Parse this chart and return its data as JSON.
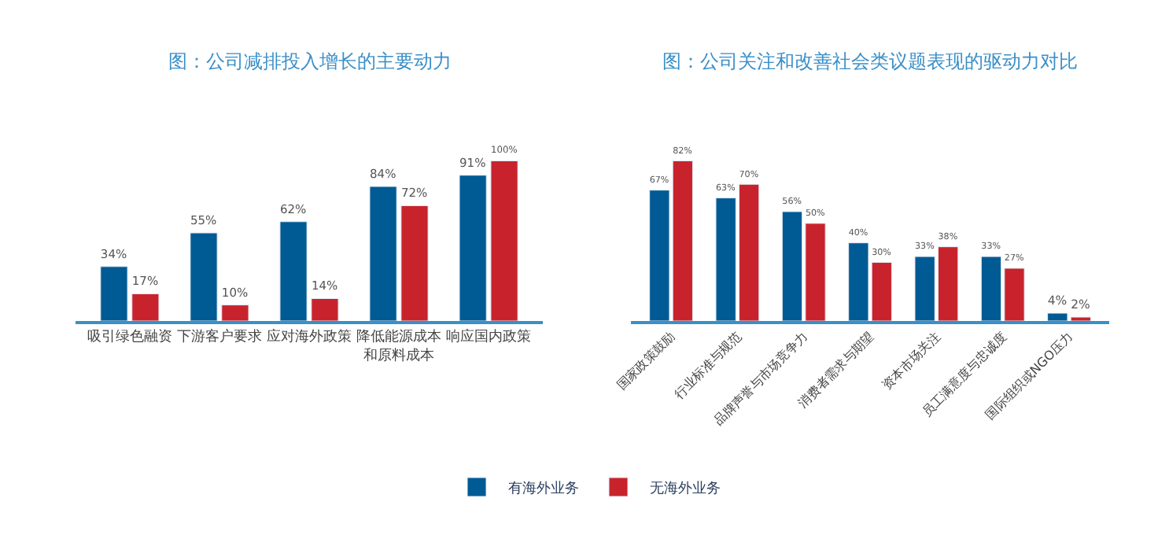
{
  "chart_data": [
    {
      "type": "bar",
      "title": "图：公司减排投入增长的主要动力",
      "categories": [
        "吸引绿色融资",
        "下游客户要求",
        "应对海外政策",
        "降低能源成本和原料成本",
        "响应国内政策"
      ],
      "series": [
        {
          "name": "有海外业务",
          "color": "#005a94",
          "values": [
            34,
            55,
            62,
            84,
            91
          ],
          "value_labels": [
            "34%",
            "55%",
            "62%",
            "84%",
            "91%"
          ]
        },
        {
          "name": "无海外业务",
          "color": "#c8232c",
          "values": [
            17,
            10,
            14,
            72,
            100
          ],
          "value_labels": [
            "17%",
            "10%",
            "14%",
            "72%",
            "100%"
          ]
        }
      ],
      "legend": "bottom"
    },
    {
      "type": "bar",
      "title": "图：公司关注和改善社会类议题表现的驱动力对比",
      "categories": [
        "国家政策鼓励",
        "行业标准与规范",
        "品牌声誉与市场竞争力",
        "消费者需求与期望",
        "资本市场关注",
        "员工满意度与忠诚度",
        "国际组织或NGO压力"
      ],
      "series": [
        {
          "name": "有海外业务",
          "color": "#005a94",
          "values": [
            67,
            63,
            56,
            40,
            33,
            33,
            4
          ],
          "value_labels": [
            "67%",
            "63%",
            "56%",
            "40%",
            "33%",
            "33%",
            "4%"
          ]
        },
        {
          "name": "无海外业务",
          "color": "#c8232c",
          "values": [
            82,
            70,
            50,
            30,
            38,
            27,
            2
          ],
          "value_labels": [
            "82%",
            "70%",
            "50%",
            "30%",
            "38%",
            "27%",
            "2%"
          ]
        }
      ],
      "legend": "bottom"
    }
  ]
}
